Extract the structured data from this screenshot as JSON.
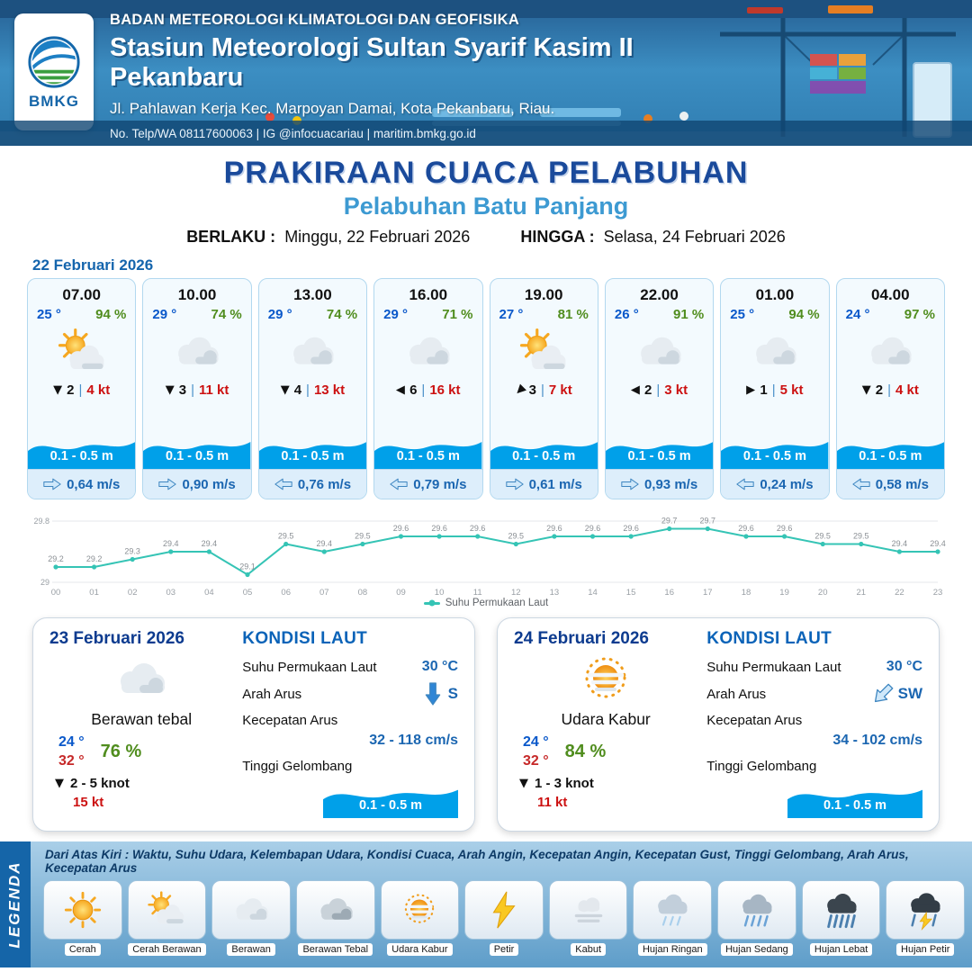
{
  "colors": {
    "header_blue": "#2f7cb0",
    "accent_navy": "#1a4a9b",
    "port_blue": "#3d9ad2",
    "temp_blue": "#0a58ca",
    "temp_red": "#c62828",
    "humidity_green": "#508d1e",
    "gust_red": "#cc1111",
    "wave_blue": "#00a0e9",
    "current_blue": "#1b66b1",
    "sst_line_teal": "#35c4b5",
    "legend_strip_blue": "#1565a8"
  },
  "header": {
    "logo_text": "BMKG",
    "org": "BADAN METEOROLOGI KLIMATOLOGI DAN GEOFISIKA",
    "station": "Stasiun Meteorologi Sultan Syarif Kasim II Pekanbaru",
    "address": "Jl. Pahlawan Kerja Kec. Marpoyan Damai, Kota Pekanbaru, Riau.",
    "contact": "No. Telp/WA 08117600063 | IG @infocuacariau | maritim.bmkg.go.id"
  },
  "title": {
    "main": "PRAKIRAAN CUACA PELABUHAN",
    "port": "Pelabuhan Batu Panjang",
    "berlaku_label": "BERLAKU :",
    "berlaku_value": "Minggu, 22 Februari 2026",
    "hingga_label": "HINGGA :",
    "hingga_value": "Selasa, 24 Februari 2026"
  },
  "forecast": {
    "date": "22 Februari 2026",
    "divider": "|",
    "cards": [
      {
        "time": "07.00",
        "temp": "25 °",
        "humidity": "94 %",
        "icon_ref": "#icon-cerah-berawan",
        "wind_arrow": "▼",
        "wind_arrow_style": "transform:rotate(0deg)",
        "wind_speed": "2",
        "gust": "4 kt",
        "wave": "0.1 - 0.5 m",
        "current": "0,64 m/s",
        "current_arrow_style": "transform:rotate(0deg)"
      },
      {
        "time": "10.00",
        "temp": "29 °",
        "humidity": "74 %",
        "icon_ref": "#icon-berawan",
        "wind_arrow": "▼",
        "wind_arrow_style": "transform:rotate(0deg)",
        "wind_speed": "3",
        "gust": "11 kt",
        "wave": "0.1 - 0.5 m",
        "current": "0,90 m/s",
        "current_arrow_style": "transform:rotate(0deg)"
      },
      {
        "time": "13.00",
        "temp": "29 °",
        "humidity": "74 %",
        "icon_ref": "#icon-berawan",
        "wind_arrow": "▼",
        "wind_arrow_style": "transform:rotate(0deg)",
        "wind_speed": "4",
        "gust": "13 kt",
        "wave": "0.1 - 0.5 m",
        "current": "0,76 m/s",
        "current_arrow_style": "transform:rotate(180deg)"
      },
      {
        "time": "16.00",
        "temp": "29 °",
        "humidity": "71 %",
        "icon_ref": "#icon-berawan",
        "wind_arrow": "▼",
        "wind_arrow_style": "transform:rotate(90deg)",
        "wind_speed": "6",
        "gust": "16 kt",
        "wave": "0.1 - 0.5 m",
        "current": "0,79 m/s",
        "current_arrow_style": "transform:rotate(180deg)"
      },
      {
        "time": "19.00",
        "temp": "27 °",
        "humidity": "81 %",
        "icon_ref": "#icon-cerah-berawan",
        "wind_arrow": "▼",
        "wind_arrow_style": "transform:rotate(45deg)",
        "wind_speed": "3",
        "gust": "7 kt",
        "wave": "0.1 - 0.5 m",
        "current": "0,61 m/s",
        "current_arrow_style": "transform:rotate(0deg)"
      },
      {
        "time": "22.00",
        "temp": "26 °",
        "humidity": "91 %",
        "icon_ref": "#icon-berawan",
        "wind_arrow": "▼",
        "wind_arrow_style": "transform:rotate(90deg)",
        "wind_speed": "2",
        "gust": "3 kt",
        "wave": "0.1 - 0.5 m",
        "current": "0,93 m/s",
        "current_arrow_style": "transform:rotate(0deg)"
      },
      {
        "time": "01.00",
        "temp": "25 °",
        "humidity": "94 %",
        "icon_ref": "#icon-berawan",
        "wind_arrow": "▼",
        "wind_arrow_style": "transform:rotate(-90deg)",
        "wind_speed": "1",
        "gust": "5 kt",
        "wave": "0.1 - 0.5 m",
        "current": "0,24 m/s",
        "current_arrow_style": "transform:rotate(180deg)"
      },
      {
        "time": "04.00",
        "temp": "24 °",
        "humidity": "97 %",
        "icon_ref": "#icon-berawan",
        "wind_arrow": "▼",
        "wind_arrow_style": "transform:rotate(0deg)",
        "wind_speed": "2",
        "gust": "4 kt",
        "wave": "0.1 - 0.5 m",
        "current": "0,58 m/s",
        "current_arrow_style": "transform:rotate(180deg)"
      }
    ]
  },
  "chart_data": {
    "type": "line",
    "legend_label": "Suhu Permukaan Laut",
    "x": [
      "00",
      "01",
      "02",
      "03",
      "04",
      "05",
      "06",
      "07",
      "08",
      "09",
      "10",
      "11",
      "12",
      "13",
      "14",
      "15",
      "16",
      "17",
      "18",
      "19",
      "20",
      "21",
      "22",
      "23"
    ],
    "values": [
      29.2,
      29.2,
      29.3,
      29.4,
      29.4,
      29.1,
      29.5,
      29.4,
      29.5,
      29.6,
      29.6,
      29.6,
      29.5,
      29.6,
      29.6,
      29.6,
      29.7,
      29.7,
      29.6,
      29.6,
      29.5,
      29.5,
      29.4,
      29.4
    ],
    "ylim": [
      29,
      29.8
    ],
    "yticks": [
      29,
      29.8
    ],
    "line_color": "#35c4b5",
    "grid": true,
    "legend_position": "bottom"
  },
  "day_cards": [
    {
      "date": "23 Februari 2026",
      "icon_ref": "#icon-berawan",
      "weather": "Berawan tebal",
      "temp_min": "24 °",
      "temp_max": "32 °",
      "humidity": "76 %",
      "wind_arrow": "▼",
      "wind": "2 - 5 knot",
      "gust": "15 kt",
      "sea": {
        "heading": "KONDISI LAUT",
        "sst_label": "Suhu Permukaan Laut",
        "sst": "30 °C",
        "current_dir_label": "Arah Arus",
        "current_dir": "S",
        "current_dir_style": "transform:rotate(90deg);color:#2f86d6",
        "current_speed_label": "Kecepatan Arus",
        "current_speed": "32 - 118 cm/s",
        "wave_label": "Tinggi Gelombang",
        "wave": "0.1 - 0.5 m"
      }
    },
    {
      "date": "24 Februari 2026",
      "icon_ref": "#icon-udara-kabur",
      "weather": "Udara Kabur",
      "temp_min": "24 °",
      "temp_max": "32 °",
      "humidity": "84 %",
      "wind_arrow": "▼",
      "wind": "1 - 3 knot",
      "gust": "11 kt",
      "sea": {
        "heading": "KONDISI LAUT",
        "sst_label": "Suhu Permukaan Laut",
        "sst": "30 °C",
        "current_dir_label": "Arah Arus",
        "current_dir": "SW",
        "current_dir_style": "transform:rotate(135deg);color:#cfe8fa",
        "current_speed_label": "Kecepatan Arus",
        "current_speed": "34 - 102 cm/s",
        "wave_label": "Tinggi Gelombang",
        "wave": "0.1 - 0.5 m"
      }
    }
  ],
  "legend": {
    "title": "LEGENDA",
    "note": "Dari Atas Kiri : Waktu, Suhu Udara, Kelembapan Udara, Kondisi Cuaca, Arah Angin, Kecepatan Angin, Kecepatan Gust, Tinggi Gelombang, Arah Arus, Kecepatan Arus",
    "items": [
      {
        "label": "Cerah",
        "icon_ref": "#icon-cerah"
      },
      {
        "label": "Cerah Berawan",
        "icon_ref": "#icon-cerah-berawan"
      },
      {
        "label": "Berawan",
        "icon_ref": "#icon-berawan"
      },
      {
        "label": "Berawan Tebal",
        "icon_ref": "#icon-berawan-tebal"
      },
      {
        "label": "Udara Kabur",
        "icon_ref": "#icon-udara-kabur"
      },
      {
        "label": "Petir",
        "icon_ref": "#icon-petir"
      },
      {
        "label": "Kabut",
        "icon_ref": "#icon-kabut"
      },
      {
        "label": "Hujan Ringan",
        "icon_ref": "#icon-hujan-ringan"
      },
      {
        "label": "Hujan Sedang",
        "icon_ref": "#icon-hujan-sedang"
      },
      {
        "label": "Hujan Lebat",
        "icon_ref": "#icon-hujan-lebat"
      },
      {
        "label": "Hujan Petir",
        "icon_ref": "#icon-hujan-petir"
      }
    ]
  }
}
